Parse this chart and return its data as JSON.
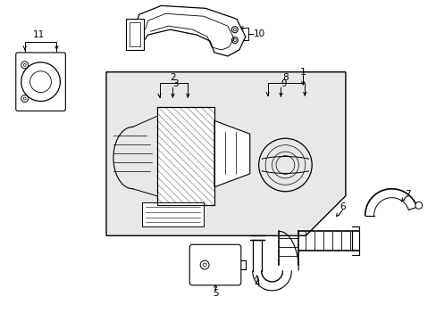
{
  "bg_color": "#ffffff",
  "line_color": "#000000",
  "box_fill": "#ebebeb",
  "fig_width": 4.89,
  "fig_height": 3.6,
  "dpi": 100
}
